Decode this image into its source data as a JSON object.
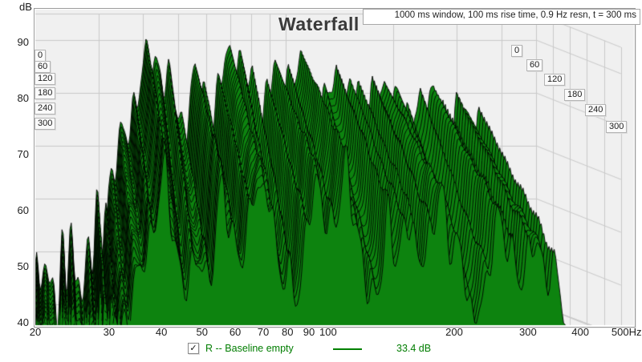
{
  "header": {
    "title": "Waterfall",
    "settings": "1000 ms window, 100 ms rise time,  0.9 Hz resn, t = 300 ms"
  },
  "axes": {
    "db_label": "dB",
    "db_ticks": [
      "90",
      "80",
      "70",
      "60",
      "50",
      "40"
    ],
    "freq_ticks": [
      "20",
      "30",
      "40",
      "50",
      "60",
      "70",
      "80",
      "90",
      "100",
      "200",
      "300",
      "400",
      "500Hz"
    ],
    "time_ticks_left": [
      "0",
      "60",
      "120",
      "180",
      "240",
      "300"
    ],
    "time_ticks_right": [
      "0",
      "60",
      "120",
      "180",
      "240",
      "300"
    ]
  },
  "legend": {
    "checkbox_checked": true,
    "check_glyph": "✓",
    "name": "R -- Baseline empty",
    "value": "33.4 dB",
    "color": "#008000"
  },
  "colors": {
    "surface_fill": "#0d830f",
    "surface_line": "#000000",
    "plot_bg": "#f0f0f0",
    "grid": "#c9c9c9",
    "legend_green": "#007d00"
  },
  "chart_data": {
    "type": "waterfall",
    "title": "Waterfall",
    "xlabel": "Hz",
    "ylabel": "dB",
    "zlabel": "ms",
    "x_scale": "log",
    "freq_axis_range_hz": [
      20,
      500
    ],
    "db_axis_range": [
      40,
      95
    ],
    "time_range_ms": [
      0,
      300
    ],
    "time_tick_step_ms": 60,
    "window_ms": 1000,
    "rise_time_ms": 100,
    "resolution_hz": 0.9,
    "cursor_time_ms": 300,
    "cursor_value_db": 33.4,
    "data_freq_end_hz": 368,
    "num_slices": 30,
    "base_response_t0": [
      [
        20,
        45
      ],
      [
        21.5,
        49
      ],
      [
        23,
        46
      ],
      [
        25,
        52
      ],
      [
        27,
        48
      ],
      [
        29,
        54
      ],
      [
        31,
        59
      ],
      [
        33,
        65
      ],
      [
        35.5,
        72
      ],
      [
        38,
        79
      ],
      [
        41,
        85
      ],
      [
        44,
        86
      ],
      [
        47,
        81
      ],
      [
        50,
        78
      ],
      [
        53,
        80
      ],
      [
        56,
        82
      ],
      [
        59,
        79
      ],
      [
        62,
        82
      ],
      [
        66,
        84
      ],
      [
        70,
        86
      ],
      [
        74,
        87
      ],
      [
        78,
        83
      ],
      [
        82,
        80
      ],
      [
        86,
        82
      ],
      [
        90,
        84
      ],
      [
        95,
        81
      ],
      [
        100,
        83
      ],
      [
        107,
        84
      ],
      [
        114,
        81
      ],
      [
        122,
        83
      ],
      [
        130,
        80
      ],
      [
        139,
        82
      ],
      [
        148,
        79
      ],
      [
        158,
        81
      ],
      [
        169,
        82
      ],
      [
        180,
        79
      ],
      [
        192,
        78
      ],
      [
        205,
        81
      ],
      [
        219,
        79
      ],
      [
        234,
        80
      ],
      [
        250,
        77
      ],
      [
        267,
        78
      ],
      [
        285,
        76
      ],
      [
        305,
        77
      ],
      [
        325,
        75
      ],
      [
        345,
        74
      ],
      [
        368,
        70
      ]
    ],
    "avg_decay_db_at_300ms": 16,
    "slow_decay_mode_freqs_hz": [
      41,
      56,
      72,
      95,
      110,
      140,
      185,
      250
    ],
    "notch_freqs_hz": [
      52,
      63,
      85,
      125,
      165,
      220,
      290
    ]
  }
}
